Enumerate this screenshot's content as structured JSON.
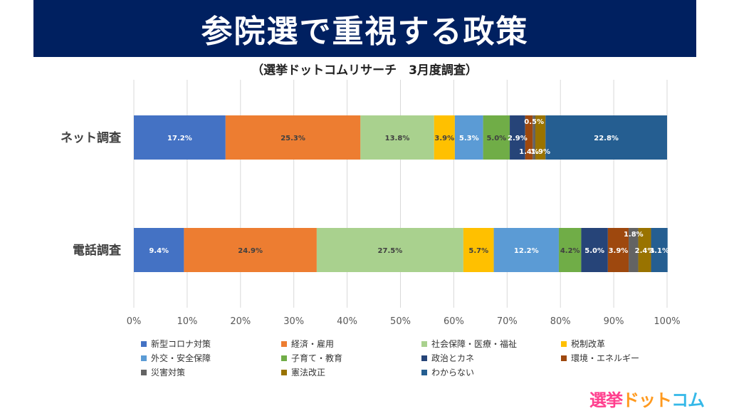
{
  "header": {
    "title": "参院選で重視する政策",
    "subtitle": "（選挙ドットコムリサーチ　3月度調査）"
  },
  "logo": {
    "part1": "選挙",
    "part2": "ドット",
    "part3": "コム"
  },
  "chart_data": {
    "type": "bar",
    "orientation": "horizontal",
    "stacked": "percent",
    "categories": [
      "ネット調査",
      "電話調査"
    ],
    "x_ticks": [
      "0%",
      "10%",
      "20%",
      "30%",
      "40%",
      "50%",
      "60%",
      "70%",
      "80%",
      "90%",
      "100%"
    ],
    "xlim": [
      0,
      100
    ],
    "grid": true,
    "legend_position": "bottom",
    "series": [
      {
        "name": "新型コロナ対策",
        "color": "#4472C4",
        "values": [
          17.2,
          9.4
        ],
        "labels": [
          "17.2%",
          "9.4%"
        ]
      },
      {
        "name": "経済・雇用",
        "color": "#ED7D31",
        "values": [
          25.3,
          24.9
        ],
        "labels": [
          "25.3%",
          "24.9%"
        ]
      },
      {
        "name": "社会保障・医療・福祉",
        "color": "#A9D18E",
        "values": [
          13.8,
          27.5
        ],
        "labels": [
          "13.8%",
          "27.5%"
        ]
      },
      {
        "name": "税制改革",
        "color": "#FFC000",
        "values": [
          3.9,
          5.7
        ],
        "labels": [
          "3.9%",
          "5.7%"
        ]
      },
      {
        "name": "外交・安全保障",
        "color": "#5B9BD5",
        "values": [
          5.3,
          12.2
        ],
        "labels": [
          "5.3%",
          "12.2%"
        ]
      },
      {
        "name": "子育て・教育",
        "color": "#70AD47",
        "values": [
          5.0,
          4.2
        ],
        "labels": [
          "5.0%",
          "4.2%"
        ]
      },
      {
        "name": "政治とカネ",
        "color": "#264478",
        "values": [
          2.9,
          5.0
        ],
        "labels": [
          "2.9%",
          "5.0%"
        ]
      },
      {
        "name": "環境・エネルギー",
        "color": "#9E480E",
        "values": [
          1.4,
          3.9
        ],
        "labels": [
          "1.4%",
          "3.9%"
        ]
      },
      {
        "name": "災害対策",
        "color": "#636363",
        "values": [
          0.5,
          1.8
        ],
        "labels": [
          "0.5%",
          "1.8%"
        ]
      },
      {
        "name": "憲法改正",
        "color": "#997300",
        "values": [
          1.9,
          2.4
        ],
        "labels": [
          "1.9%",
          "2.4%"
        ]
      },
      {
        "name": "わからない",
        "color": "#255E91",
        "values": [
          22.8,
          3.1
        ],
        "labels": [
          "22.8%",
          "3.1%"
        ]
      }
    ]
  }
}
